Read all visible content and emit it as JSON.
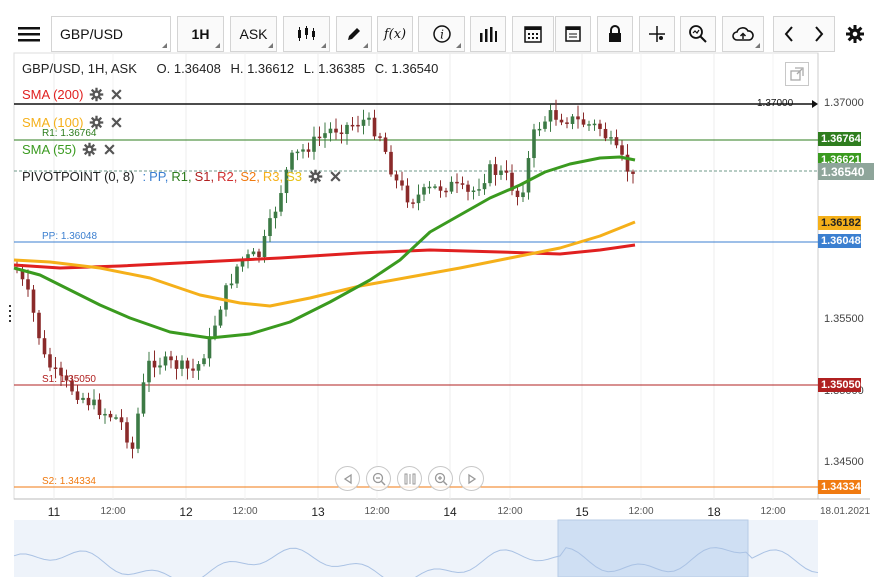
{
  "toolbar": {
    "menu_icon": "hamburger-icon",
    "symbol_value": "GBP/USD",
    "interval_label": "1H",
    "price_type_label": "ASK",
    "fx_label": "f(x)",
    "info_label": "i"
  },
  "chart_title": {
    "symbol": "GBP/USD, 1H, ASK",
    "open": "O. 1.36408",
    "high": "H. 1.36612",
    "low": "L. 1.36385",
    "close": "C. 1.36540"
  },
  "indicators": {
    "sma200": "SMA (200)",
    "sma100": "SMA (100)",
    "sma55": "SMA (55)",
    "pivot_name": "PIVOTPOINT (0, 8)",
    "pivot_sep": ":",
    "pivot_pp": "PP,",
    "pivot_r1": "R1,",
    "pivot_s1": "S1,",
    "pivot_r2": "R2,",
    "pivot_s2": "S2,",
    "pivot_r3": "R3,",
    "pivot_s3": "S3"
  },
  "pivot_levels": {
    "r1": "R1: 1.36764",
    "pp": "PP: 1.36048",
    "s1": "S1: 1.35050",
    "s2": "S2: 1.34334"
  },
  "price_axis": {
    "ticks": [
      "1.37000",
      "1.35500",
      "1.35000",
      "1.34500"
    ],
    "horizontal_line_label": "1.37000",
    "badges": {
      "r1": "1.36764",
      "sma55": "1.36621",
      "last": "1.36540",
      "sma100": "1.36182",
      "pp": "1.36048",
      "s1": "1.35050",
      "s2": "1.34334"
    }
  },
  "time_axis": {
    "days": [
      "11",
      "12",
      "13",
      "14",
      "15",
      "18"
    ],
    "hours": [
      "12:00",
      "12:00",
      "12:00",
      "12:00",
      "12:00",
      "12:00"
    ],
    "end_date": "18.01.2021"
  },
  "colors": {
    "sma200": "#e02020",
    "sma100": "#f5b01a",
    "sma55": "#3a9a1f",
    "r1": "#2e7d1e",
    "pp": "#3b7fd0",
    "s1": "#b02020",
    "s2": "#f07a10",
    "bull": "#3c7a45",
    "bear": "#8a2a2a"
  }
}
